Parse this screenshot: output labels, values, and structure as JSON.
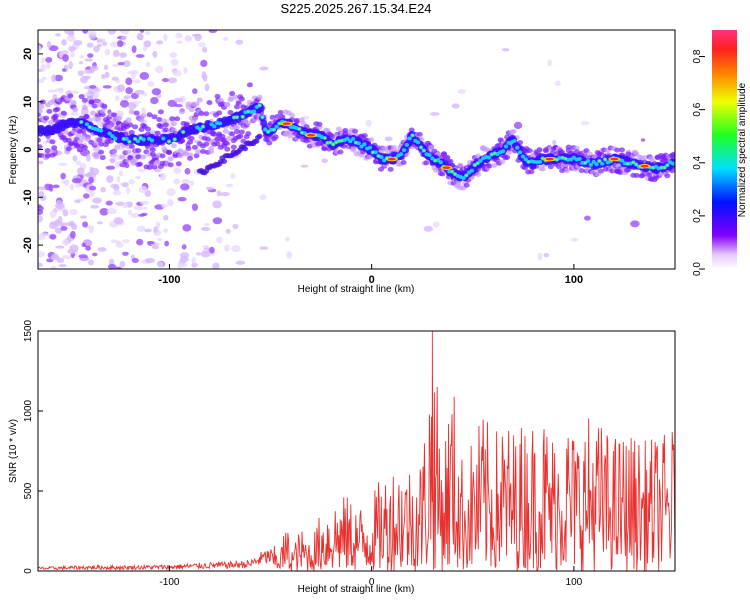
{
  "title": "S225.2025.267.15.34.E24",
  "chart_data": [
    {
      "type": "heatmap",
      "xlabel": "Height of straight line (km)",
      "ylabel": "Frequency (Hz)",
      "xlim": [
        -165,
        150
      ],
      "ylim": [
        -25,
        25
      ],
      "xticks": [
        -100,
        0,
        100
      ],
      "yticks": [
        -20,
        -10,
        0,
        10,
        20
      ],
      "ridge_x": [
        -160,
        -145,
        -130,
        -120,
        -110,
        -100,
        -95,
        -90,
        -80,
        -70,
        -60,
        -55,
        -52,
        -45,
        -40,
        -35,
        -30,
        -25,
        -20,
        -15,
        -10,
        -5,
        0,
        5,
        10,
        15,
        20,
        25,
        30,
        35,
        40,
        45,
        50,
        55,
        60,
        65,
        70,
        75,
        80,
        85,
        90,
        100,
        110,
        120,
        130,
        140,
        148
      ],
      "ridge_y": [
        4,
        6,
        3,
        2,
        2,
        2,
        3,
        4,
        5,
        6,
        8,
        9,
        3,
        6,
        5,
        4,
        3,
        3,
        1,
        2,
        2,
        1,
        0,
        -2,
        -2,
        -1,
        3,
        0,
        -2,
        -3,
        -5,
        -6,
        -4,
        -2,
        -1,
        0,
        2,
        -2,
        -3,
        -2,
        -2,
        -2,
        -3,
        -2,
        -3,
        -4,
        -3
      ],
      "colorbar": {
        "label": "Normalized spectral amplitude",
        "ticks": [
          "0.0",
          "0.2",
          "0.4",
          "0.6",
          "0.8"
        ],
        "range": [
          0,
          0.9
        ]
      }
    },
    {
      "type": "line",
      "xlabel": "Height of straight line (km)",
      "ylabel": "SNR (10 * v/v)",
      "xlim": [
        -165,
        150
      ],
      "ylim": [
        0,
        1500
      ],
      "xticks": [
        -100,
        0,
        100
      ],
      "yticks": [
        0,
        500,
        1000,
        1500
      ],
      "series": [
        {
          "color": "#e8312f",
          "x": [
            -165,
            -140,
            -120,
            -100,
            -80,
            -70,
            -60,
            -55,
            -50,
            -45,
            -42,
            -40,
            -35,
            -30,
            -25,
            -20,
            -15,
            -10,
            -5,
            0,
            5,
            10,
            15,
            20,
            25,
            30,
            35,
            40,
            45,
            50,
            55,
            60,
            65,
            70,
            75,
            80,
            85,
            90,
            95,
            100,
            105,
            110,
            115,
            120,
            125,
            130,
            135,
            140,
            145,
            150
          ],
          "y": [
            25,
            35,
            35,
            40,
            55,
            60,
            70,
            120,
            150,
            170,
            300,
            150,
            270,
            200,
            380,
            460,
            480,
            460,
            420,
            480,
            600,
            680,
            720,
            680,
            760,
            1500,
            800,
            1230,
            700,
            850,
            1000,
            860,
            980,
            900,
            950,
            960,
            1000,
            880,
            1020,
            900,
            970,
            1010,
            900,
            860,
            880,
            860,
            820,
            850,
            860,
            920
          ]
        }
      ]
    }
  ]
}
